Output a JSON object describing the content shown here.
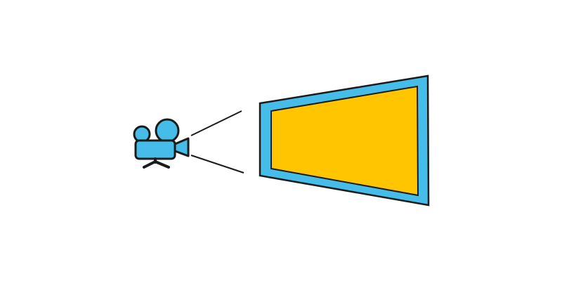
{
  "scene": {
    "icons": {
      "camera": "video-camera-icon",
      "screen": "projection-screen-icon"
    },
    "colors": {
      "background": "#ffffff",
      "outline": "#1b1b1b",
      "camera_fill": "#45bde8",
      "screen_frame": "#45bde8",
      "screen_fill": "#ffc500"
    }
  }
}
